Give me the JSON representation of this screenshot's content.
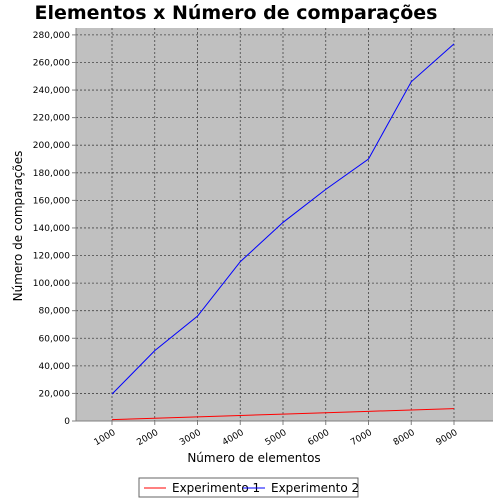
{
  "chart_data": {
    "type": "line",
    "title": "Elementos x Número de comparações",
    "xlabel": "Número de elementos",
    "ylabel": "Número de comparações",
    "x": [
      1000,
      2000,
      3000,
      4000,
      5000,
      6000,
      7000,
      8000,
      9000
    ],
    "x_tick_labels": [
      "1000",
      "2000",
      "3000",
      "4000",
      "5000",
      "6000",
      "7000",
      "8000",
      "9000"
    ],
    "y_tick_labels": [
      "0",
      "20,000",
      "40,000",
      "60,000",
      "80,000",
      "100,000",
      "120,000",
      "140,000",
      "160,000",
      "180,000",
      "200,000",
      "220,000",
      "240,000",
      "260,000",
      "280,000"
    ],
    "ylim": [
      0,
      285000
    ],
    "grid": true,
    "legend_position": "bottom",
    "series": [
      {
        "name": "Experimento 1",
        "color": "#ff0000",
        "values": [
          1000,
          2000,
          3000,
          4000,
          5000,
          6000,
          7000,
          8000,
          9000
        ]
      },
      {
        "name": "Experimento 2",
        "color": "#0000ff",
        "values": [
          19500,
          51000,
          76000,
          115500,
          144000,
          168000,
          190000,
          246000,
          273500
        ]
      }
    ],
    "plot_background": "#c0c0c0"
  }
}
